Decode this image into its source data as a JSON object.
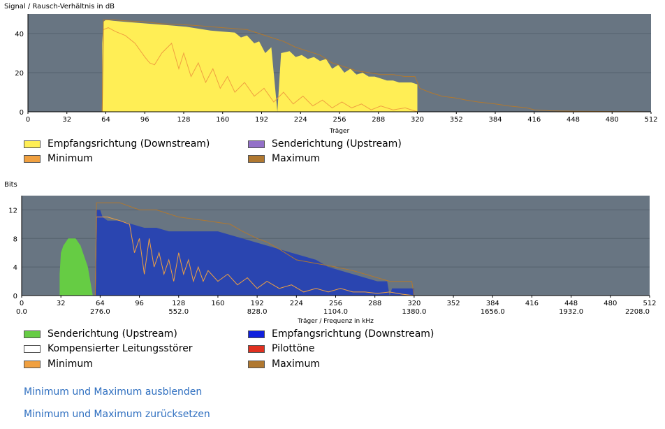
{
  "colors": {
    "plot_bg": "#687582",
    "gridline": "#55616d",
    "snr_fill": "#ffee55",
    "bits_fill": "#2a45b0",
    "upstream_fill": "#66cc44",
    "downstream_legend": "#1020dd",
    "upstream_legend_purple": "#9370c8",
    "minimum": "#f0a040",
    "maximum": "#b07830",
    "white": "#ffffff",
    "pilot": "#e03020",
    "link": "#2f6fc0"
  },
  "chart_data": [
    {
      "id": "snr",
      "type": "area",
      "title": "Signal / Rausch-Verhältnis in dB",
      "xlabel": "Träger",
      "ylabel": "",
      "xlim": [
        0,
        512
      ],
      "ylim": [
        0,
        50
      ],
      "x_ticks": [
        0,
        32,
        64,
        96,
        128,
        160,
        192,
        224,
        256,
        288,
        320,
        352,
        384,
        416,
        448,
        480,
        512
      ],
      "y_ticks": [
        0,
        20,
        40
      ],
      "series": [
        {
          "name": "Empfangsrichtung (Downstream)",
          "kind": "area",
          "color_key": "snr_fill",
          "points": [
            [
              61,
              0
            ],
            [
              61,
              35
            ],
            [
              62,
              46
            ],
            [
              64,
              47
            ],
            [
              70,
              46.5
            ],
            [
              80,
              46
            ],
            [
              90,
              45.5
            ],
            [
              100,
              45
            ],
            [
              110,
              44.5
            ],
            [
              120,
              44
            ],
            [
              130,
              43.5
            ],
            [
              140,
              42.5
            ],
            [
              150,
              41.5
            ],
            [
              160,
              41
            ],
            [
              170,
              40.5
            ],
            [
              175,
              38
            ],
            [
              180,
              39
            ],
            [
              186,
              35
            ],
            [
              190,
              36
            ],
            [
              195,
              30
            ],
            [
              200,
              33
            ],
            [
              205,
              0
            ],
            [
              208,
              30
            ],
            [
              215,
              31
            ],
            [
              220,
              28
            ],
            [
              225,
              29
            ],
            [
              230,
              27
            ],
            [
              235,
              28
            ],
            [
              240,
              26
            ],
            [
              245,
              27
            ],
            [
              250,
              22
            ],
            [
              255,
              24
            ],
            [
              260,
              20
            ],
            [
              265,
              22
            ],
            [
              270,
              19
            ],
            [
              275,
              20
            ],
            [
              280,
              18
            ],
            [
              285,
              18
            ],
            [
              290,
              17
            ],
            [
              295,
              16
            ],
            [
              300,
              16
            ],
            [
              305,
              15
            ],
            [
              310,
              15
            ],
            [
              315,
              15
            ],
            [
              320,
              14
            ],
            [
              320,
              0
            ]
          ]
        },
        {
          "name": "Minimum",
          "kind": "line",
          "color_key": "minimum",
          "points": [
            [
              61,
              0
            ],
            [
              62,
              42
            ],
            [
              66,
              43
            ],
            [
              72,
              41
            ],
            [
              80,
              39
            ],
            [
              88,
              35
            ],
            [
              96,
              28
            ],
            [
              100,
              25
            ],
            [
              104,
              24
            ],
            [
              110,
              30
            ],
            [
              118,
              35
            ],
            [
              124,
              22
            ],
            [
              128,
              30
            ],
            [
              134,
              18
            ],
            [
              140,
              25
            ],
            [
              146,
              15
            ],
            [
              152,
              22
            ],
            [
              158,
              12
            ],
            [
              164,
              18
            ],
            [
              170,
              10
            ],
            [
              178,
              15
            ],
            [
              186,
              8
            ],
            [
              194,
              12
            ],
            [
              202,
              5
            ],
            [
              210,
              10
            ],
            [
              218,
              4
            ],
            [
              226,
              8
            ],
            [
              234,
              3
            ],
            [
              242,
              6
            ],
            [
              250,
              2
            ],
            [
              258,
              5
            ],
            [
              266,
              2
            ],
            [
              274,
              4
            ],
            [
              282,
              1
            ],
            [
              290,
              3
            ],
            [
              300,
              1
            ],
            [
              310,
              2
            ],
            [
              320,
              0
            ]
          ]
        },
        {
          "name": "Maximum",
          "kind": "line",
          "color_key": "maximum",
          "points": [
            [
              61,
              0
            ],
            [
              62,
              47
            ],
            [
              70,
              47
            ],
            [
              80,
              46.5
            ],
            [
              96,
              46
            ],
            [
              110,
              45
            ],
            [
              128,
              44.5
            ],
            [
              140,
              44
            ],
            [
              160,
              43
            ],
            [
              180,
              42
            ],
            [
              190,
              40
            ],
            [
              200,
              38
            ],
            [
              210,
              36
            ],
            [
              220,
              33
            ],
            [
              230,
              31
            ],
            [
              240,
              29
            ],
            [
              250,
              25
            ],
            [
              260,
              23
            ],
            [
              270,
              21
            ],
            [
              280,
              20
            ],
            [
              290,
              19
            ],
            [
              300,
              19
            ],
            [
              310,
              18
            ],
            [
              318,
              18
            ],
            [
              322,
              12
            ],
            [
              330,
              10
            ],
            [
              340,
              8
            ],
            [
              352,
              7
            ],
            [
              360,
              6
            ],
            [
              370,
              5
            ],
            [
              384,
              4
            ],
            [
              395,
              3
            ],
            [
              410,
              2
            ],
            [
              416,
              1
            ],
            [
              430,
              0.5
            ],
            [
              450,
              0.3
            ],
            [
              512,
              0
            ]
          ]
        }
      ]
    },
    {
      "id": "bits",
      "type": "area",
      "title": "Bits",
      "xlabel": "Träger / Frequenz in kHz",
      "ylabel": "",
      "xlim": [
        0,
        512
      ],
      "ylim": [
        0,
        14
      ],
      "x_ticks": [
        0,
        32,
        64,
        96,
        128,
        160,
        192,
        224,
        256,
        288,
        320,
        352,
        384,
        416,
        448,
        480,
        512
      ],
      "x_ticks_freq": [
        "0.0",
        "276.0",
        "552.0",
        "828.0",
        "1104.0",
        "1380.0",
        "1656.0",
        "1932.0",
        "2208.0"
      ],
      "y_ticks": [
        0,
        4,
        8,
        12
      ],
      "series": [
        {
          "name": "Senderichtung (Upstream)",
          "kind": "area",
          "color_key": "upstream_fill",
          "points": [
            [
              31,
              0
            ],
            [
              31,
              3
            ],
            [
              32,
              6
            ],
            [
              34,
              7
            ],
            [
              36,
              7.5
            ],
            [
              38,
              8
            ],
            [
              44,
              8
            ],
            [
              46,
              7.5
            ],
            [
              48,
              7
            ],
            [
              50,
              6
            ],
            [
              52,
              5
            ],
            [
              54,
              4
            ],
            [
              56,
              2
            ],
            [
              58,
              0
            ]
          ]
        },
        {
          "name": "Empfangsrichtung (Downstream)",
          "kind": "area",
          "color_key": "bits_fill",
          "points": [
            [
              60,
              0
            ],
            [
              61,
              12
            ],
            [
              64,
              12
            ],
            [
              66,
              11
            ],
            [
              70,
              10.5
            ],
            [
              80,
              10.5
            ],
            [
              90,
              10
            ],
            [
              100,
              9.5
            ],
            [
              110,
              9.5
            ],
            [
              120,
              9
            ],
            [
              130,
              9
            ],
            [
              140,
              9
            ],
            [
              150,
              9
            ],
            [
              160,
              9
            ],
            [
              170,
              8.5
            ],
            [
              180,
              8
            ],
            [
              190,
              7.5
            ],
            [
              200,
              7
            ],
            [
              210,
              6.5
            ],
            [
              220,
              6
            ],
            [
              230,
              5.5
            ],
            [
              240,
              5
            ],
            [
              250,
              4
            ],
            [
              260,
              3.5
            ],
            [
              270,
              3
            ],
            [
              280,
              2.5
            ],
            [
              290,
              2
            ],
            [
              298,
              2
            ],
            [
              300,
              0
            ],
            [
              302,
              1
            ],
            [
              320,
              1
            ],
            [
              320,
              0
            ]
          ]
        },
        {
          "name": "Minimum",
          "kind": "line",
          "color_key": "minimum",
          "points": [
            [
              60,
              0
            ],
            [
              61,
              11
            ],
            [
              70,
              11
            ],
            [
              80,
              10.5
            ],
            [
              88,
              10
            ],
            [
              92,
              6
            ],
            [
              96,
              8
            ],
            [
              100,
              3
            ],
            [
              104,
              8
            ],
            [
              108,
              4
            ],
            [
              112,
              6
            ],
            [
              116,
              3
            ],
            [
              120,
              5
            ],
            [
              124,
              2
            ],
            [
              128,
              6
            ],
            [
              132,
              3
            ],
            [
              136,
              5
            ],
            [
              140,
              2
            ],
            [
              144,
              4
            ],
            [
              148,
              2
            ],
            [
              152,
              3.5
            ],
            [
              160,
              2
            ],
            [
              168,
              3
            ],
            [
              176,
              1.5
            ],
            [
              184,
              2.5
            ],
            [
              192,
              1
            ],
            [
              200,
              2
            ],
            [
              210,
              1
            ],
            [
              220,
              1.5
            ],
            [
              230,
              0.5
            ],
            [
              240,
              1
            ],
            [
              250,
              0.5
            ],
            [
              260,
              1
            ],
            [
              270,
              0.5
            ],
            [
              280,
              0.5
            ],
            [
              290,
              0.3
            ],
            [
              300,
              0.5
            ],
            [
              310,
              0.2
            ],
            [
              320,
              0
            ]
          ]
        },
        {
          "name": "Maximum",
          "kind": "line",
          "color_key": "maximum",
          "points": [
            [
              60,
              0
            ],
            [
              61,
              13
            ],
            [
              70,
              13
            ],
            [
              80,
              13
            ],
            [
              96,
              12
            ],
            [
              110,
              12
            ],
            [
              128,
              11
            ],
            [
              150,
              10.5
            ],
            [
              170,
              10
            ],
            [
              180,
              9
            ],
            [
              192,
              8
            ],
            [
              200,
              7.5
            ],
            [
              210,
              6.5
            ],
            [
              224,
              5
            ],
            [
              240,
              4.5
            ],
            [
              256,
              4
            ],
            [
              270,
              3.5
            ],
            [
              280,
              3
            ],
            [
              290,
              2.5
            ],
            [
              300,
              2
            ],
            [
              310,
              2
            ],
            [
              318,
              2
            ],
            [
              320,
              0
            ]
          ]
        }
      ]
    }
  ],
  "legends": {
    "snr": {
      "downstream": "Empfangsrichtung (Downstream)",
      "upstream": "Senderichtung (Upstream)",
      "minimum": "Minimum",
      "maximum": "Maximum"
    },
    "bits": {
      "upstream": "Senderichtung (Upstream)",
      "downstream": "Empfangsrichtung (Downstream)",
      "crosstalk": "Kompensierter Leitungsstörer",
      "pilot": "Pilottöne",
      "minimum": "Minimum",
      "maximum": "Maximum"
    }
  },
  "links": {
    "hide_minmax": "Minimum und Maximum ausblenden",
    "reset_minmax": "Minimum und Maximum zurücksetzen"
  }
}
